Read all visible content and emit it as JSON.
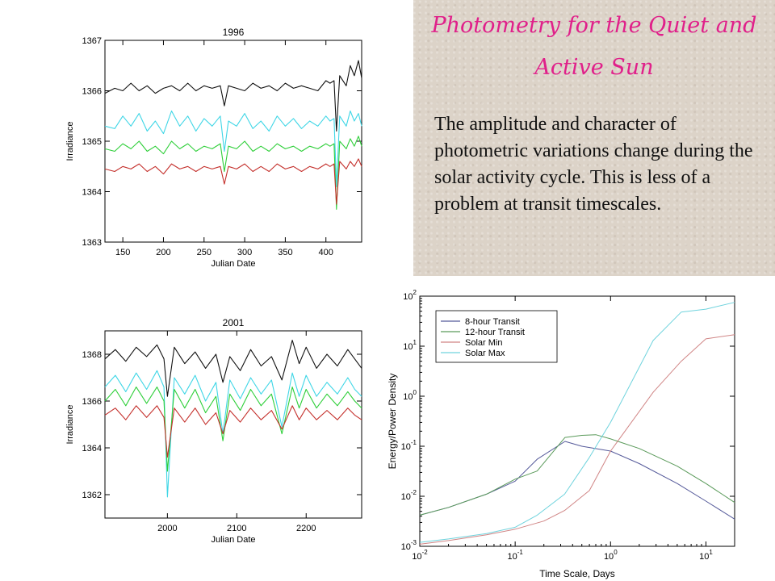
{
  "slide": {
    "title": "Photometry for the Quiet and Active Sun",
    "body": "The amplitude and character of photometric variations change during the solar activity cycle. This is less of a problem at transit timescales."
  },
  "colors": {
    "black_series": "#111111",
    "cyan_series": "#3fd6e6",
    "green_series": "#2fcf3a",
    "red_series": "#c4302c",
    "title_pink": "#e0208a",
    "panel_bg": "#dcd3c8"
  },
  "chart_data": [
    {
      "type": "line",
      "title": "1996",
      "xlabel": "Julian Date",
      "ylabel": "Irradiance",
      "xlim": [
        128,
        444
      ],
      "ylim": [
        1363,
        1367
      ],
      "xticks": [
        150,
        200,
        250,
        300,
        350,
        400
      ],
      "yticks": [
        1363,
        1364,
        1365,
        1366,
        1367
      ],
      "series": [
        {
          "color": "#111111",
          "x": [
            128,
            140,
            150,
            160,
            170,
            180,
            190,
            200,
            210,
            220,
            230,
            240,
            250,
            260,
            270,
            275,
            280,
            290,
            300,
            310,
            320,
            330,
            340,
            350,
            360,
            370,
            380,
            390,
            400,
            405,
            410,
            413,
            417,
            425,
            430,
            435,
            440,
            444
          ],
          "values": [
            1365.95,
            1366.05,
            1366.0,
            1366.15,
            1366.0,
            1366.1,
            1365.95,
            1366.05,
            1366.1,
            1366.0,
            1366.15,
            1366.0,
            1366.1,
            1366.05,
            1366.1,
            1365.7,
            1366.1,
            1366.05,
            1366.0,
            1366.15,
            1366.05,
            1366.1,
            1366.0,
            1366.15,
            1366.05,
            1366.1,
            1366.05,
            1366.0,
            1366.2,
            1366.15,
            1366.2,
            1365.2,
            1366.3,
            1366.1,
            1366.5,
            1366.3,
            1366.6,
            1366.25
          ]
        },
        {
          "color": "#3fd6e6",
          "x": [
            128,
            140,
            150,
            160,
            170,
            180,
            190,
            200,
            210,
            220,
            230,
            240,
            250,
            260,
            270,
            275,
            280,
            290,
            300,
            310,
            320,
            330,
            340,
            350,
            360,
            370,
            380,
            390,
            400,
            405,
            410,
            413,
            417,
            425,
            430,
            435,
            440,
            444
          ],
          "values": [
            1365.3,
            1365.25,
            1365.5,
            1365.3,
            1365.55,
            1365.2,
            1365.4,
            1365.15,
            1365.6,
            1365.3,
            1365.5,
            1365.2,
            1365.45,
            1365.3,
            1365.5,
            1364.8,
            1365.4,
            1365.3,
            1365.55,
            1365.25,
            1365.4,
            1365.2,
            1365.5,
            1365.3,
            1365.45,
            1365.25,
            1365.4,
            1365.3,
            1365.5,
            1365.4,
            1365.45,
            1364.1,
            1365.5,
            1365.3,
            1365.6,
            1365.4,
            1365.55,
            1365.3
          ]
        },
        {
          "color": "#2fcf3a",
          "x": [
            128,
            140,
            150,
            160,
            170,
            180,
            190,
            200,
            210,
            220,
            230,
            240,
            250,
            260,
            270,
            275,
            280,
            290,
            300,
            310,
            320,
            330,
            340,
            350,
            360,
            370,
            380,
            390,
            400,
            405,
            410,
            413,
            417,
            425,
            430,
            435,
            440,
            444
          ],
          "values": [
            1364.85,
            1364.8,
            1364.95,
            1364.85,
            1365.0,
            1364.8,
            1364.9,
            1364.75,
            1365.0,
            1364.85,
            1364.95,
            1364.8,
            1364.9,
            1364.85,
            1364.95,
            1364.4,
            1364.9,
            1364.85,
            1365.0,
            1364.8,
            1364.9,
            1364.8,
            1364.95,
            1364.85,
            1364.9,
            1364.8,
            1364.9,
            1364.85,
            1364.95,
            1364.9,
            1364.95,
            1363.65,
            1365.0,
            1364.85,
            1365.05,
            1364.9,
            1365.1,
            1364.9
          ]
        },
        {
          "color": "#c4302c",
          "x": [
            128,
            140,
            150,
            160,
            170,
            180,
            190,
            200,
            210,
            220,
            230,
            240,
            250,
            260,
            270,
            275,
            280,
            290,
            300,
            310,
            320,
            330,
            340,
            350,
            360,
            370,
            380,
            390,
            400,
            405,
            410,
            413,
            417,
            425,
            430,
            435,
            440,
            444
          ],
          "values": [
            1364.45,
            1364.4,
            1364.5,
            1364.45,
            1364.55,
            1364.4,
            1364.5,
            1364.35,
            1364.55,
            1364.45,
            1364.5,
            1364.4,
            1364.5,
            1364.45,
            1364.5,
            1364.15,
            1364.5,
            1364.45,
            1364.55,
            1364.4,
            1364.5,
            1364.4,
            1364.55,
            1364.45,
            1364.5,
            1364.4,
            1364.5,
            1364.45,
            1364.55,
            1364.5,
            1364.55,
            1363.75,
            1364.6,
            1364.45,
            1364.6,
            1364.5,
            1364.65,
            1364.5
          ]
        }
      ]
    },
    {
      "type": "line",
      "title": "2001",
      "xlabel": "Julian Date",
      "ylabel": "Irradiance",
      "xlim": [
        1910,
        2280
      ],
      "ylim": [
        1361,
        1369
      ],
      "xticks": [
        2000,
        2100,
        2200
      ],
      "yticks": [
        1362,
        1364,
        1366,
        1368
      ],
      "series": [
        {
          "color": "#111111",
          "x": [
            1910,
            1925,
            1940,
            1955,
            1970,
            1985,
            1995,
            2000,
            2010,
            2025,
            2040,
            2055,
            2070,
            2080,
            2090,
            2105,
            2120,
            2135,
            2150,
            2165,
            2180,
            2190,
            2200,
            2215,
            2230,
            2245,
            2260,
            2270,
            2280
          ],
          "values": [
            1367.8,
            1368.2,
            1367.7,
            1368.3,
            1367.9,
            1368.4,
            1367.8,
            1366.2,
            1368.3,
            1367.6,
            1368.1,
            1367.4,
            1368.0,
            1366.8,
            1367.9,
            1367.3,
            1368.2,
            1367.5,
            1367.9,
            1366.9,
            1368.6,
            1367.6,
            1368.3,
            1367.4,
            1368.0,
            1367.5,
            1368.2,
            1367.8,
            1367.4
          ]
        },
        {
          "color": "#3fd6e6",
          "x": [
            1910,
            1925,
            1940,
            1955,
            1970,
            1985,
            1995,
            2000,
            2010,
            2025,
            2040,
            2055,
            2070,
            2080,
            2090,
            2105,
            2120,
            2135,
            2150,
            2165,
            2180,
            2190,
            2200,
            2215,
            2230,
            2245,
            2260,
            2270,
            2280
          ],
          "values": [
            1366.6,
            1367.1,
            1366.4,
            1367.2,
            1366.5,
            1367.3,
            1366.6,
            1361.9,
            1367.0,
            1366.3,
            1367.1,
            1366.0,
            1366.8,
            1364.6,
            1366.9,
            1366.1,
            1367.0,
            1366.3,
            1366.9,
            1364.9,
            1367.2,
            1366.2,
            1367.1,
            1366.2,
            1366.8,
            1366.3,
            1367.0,
            1366.5,
            1366.2
          ]
        },
        {
          "color": "#2fcf3a",
          "x": [
            1910,
            1925,
            1940,
            1955,
            1970,
            1985,
            1995,
            2000,
            2010,
            2025,
            2040,
            2055,
            2070,
            2080,
            2090,
            2105,
            2120,
            2135,
            2150,
            2165,
            2180,
            2190,
            2200,
            2215,
            2230,
            2245,
            2260,
            2270,
            2280
          ],
          "values": [
            1366.0,
            1366.5,
            1365.8,
            1366.6,
            1365.9,
            1366.6,
            1366.0,
            1363.0,
            1366.5,
            1365.7,
            1366.5,
            1365.5,
            1366.2,
            1364.3,
            1366.3,
            1365.6,
            1366.5,
            1365.8,
            1366.3,
            1364.6,
            1366.6,
            1365.7,
            1366.5,
            1365.7,
            1366.3,
            1365.8,
            1366.4,
            1366.0,
            1365.7
          ]
        },
        {
          "color": "#c4302c",
          "x": [
            1910,
            1925,
            1940,
            1955,
            1970,
            1985,
            1995,
            2000,
            2010,
            2025,
            2040,
            2055,
            2070,
            2080,
            2090,
            2105,
            2120,
            2135,
            2150,
            2165,
            2180,
            2190,
            2200,
            2215,
            2230,
            2245,
            2260,
            2270,
            2280
          ],
          "values": [
            1365.4,
            1365.7,
            1365.2,
            1365.8,
            1365.3,
            1365.8,
            1365.3,
            1363.6,
            1365.7,
            1365.1,
            1365.7,
            1365.0,
            1365.5,
            1364.6,
            1365.6,
            1365.1,
            1365.7,
            1365.2,
            1365.6,
            1364.8,
            1365.8,
            1365.2,
            1365.7,
            1365.2,
            1365.6,
            1365.2,
            1365.7,
            1365.4,
            1365.2
          ]
        }
      ]
    },
    {
      "type": "line",
      "title": "",
      "xlabel": "Time Scale, Days",
      "ylabel": "Energy/Power Density",
      "x_scale": "log",
      "y_scale": "log",
      "xlim": [
        0.01,
        20
      ],
      "ylim": [
        0.001,
        100
      ],
      "xticks": [
        0.01,
        0.1,
        1,
        10
      ],
      "xtick_labels": [
        {
          "base": "10",
          "exp": "-2"
        },
        {
          "base": "10",
          "exp": "-1"
        },
        {
          "base": "10",
          "exp": "0"
        },
        {
          "base": "10",
          "exp": "1"
        }
      ],
      "yticks": [
        0.001,
        0.01,
        0.1,
        1,
        10,
        100
      ],
      "ytick_labels": [
        {
          "base": "10",
          "exp": "-3"
        },
        {
          "base": "10",
          "exp": "-2"
        },
        {
          "base": "10",
          "exp": "-1"
        },
        {
          "base": "10",
          "exp": "0"
        },
        {
          "base": "10",
          "exp": "1"
        },
        {
          "base": "10",
          "exp": "2"
        }
      ],
      "legend_position": "top-left",
      "series": [
        {
          "name": "8-hour Transit",
          "color": "#555a9a",
          "x": [
            0.01,
            0.02,
            0.05,
            0.1,
            0.17,
            0.333,
            0.5,
            1,
            2,
            5,
            10,
            20
          ],
          "values": [
            0.0042,
            0.006,
            0.011,
            0.02,
            0.055,
            0.125,
            0.1,
            0.08,
            0.045,
            0.018,
            0.008,
            0.0035
          ]
        },
        {
          "name": "12-hour Transit",
          "color": "#5a9a5a",
          "x": [
            0.01,
            0.02,
            0.05,
            0.1,
            0.17,
            0.333,
            0.5,
            0.7,
            1,
            2,
            5,
            10,
            20
          ],
          "values": [
            0.0042,
            0.006,
            0.011,
            0.022,
            0.032,
            0.15,
            0.165,
            0.17,
            0.14,
            0.09,
            0.04,
            0.018,
            0.0075
          ]
        },
        {
          "name": "Solar Min",
          "color": "#d08585",
          "x": [
            0.01,
            0.02,
            0.05,
            0.1,
            0.2,
            0.33,
            0.6,
            1,
            2.8,
            5.5,
            10,
            20
          ],
          "values": [
            0.0011,
            0.0013,
            0.0017,
            0.0022,
            0.0032,
            0.0052,
            0.013,
            0.08,
            1.2,
            5,
            14,
            17
          ]
        },
        {
          "name": "Solar Max",
          "color": "#6fd3dd",
          "x": [
            0.01,
            0.02,
            0.05,
            0.1,
            0.17,
            0.33,
            0.6,
            1,
            2.8,
            5.5,
            10,
            20
          ],
          "values": [
            0.0012,
            0.0014,
            0.0018,
            0.0024,
            0.0042,
            0.011,
            0.06,
            0.3,
            13,
            48,
            55,
            75
          ]
        }
      ]
    }
  ]
}
